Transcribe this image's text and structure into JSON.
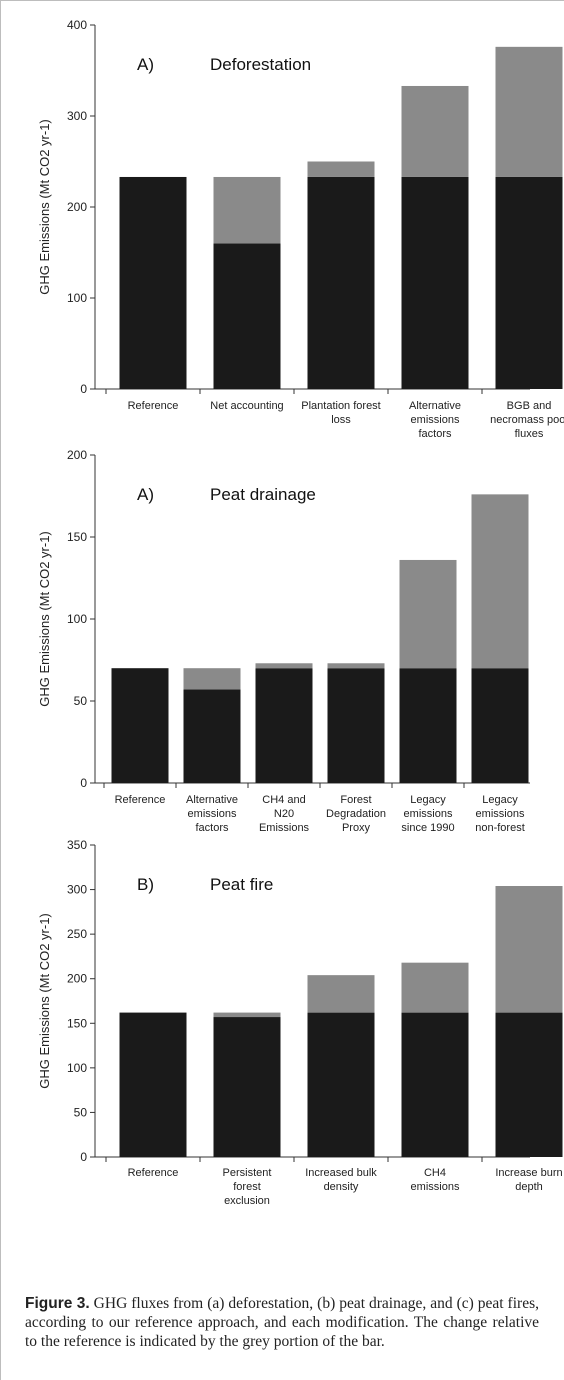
{
  "colors": {
    "base": "#1a1a1a",
    "change": "#8a8a8a",
    "axis": "#333333"
  },
  "chart_data": [
    {
      "type": "bar",
      "stacked": true,
      "panel_label": "A)",
      "title": "Deforestation",
      "ylabel": "GHG Emissions (Mt CO2 yr-1)",
      "ylim": [
        0,
        400
      ],
      "yticks": [
        0,
        100,
        200,
        300,
        400
      ],
      "categories": [
        [
          "Reference"
        ],
        [
          "Net accounting"
        ],
        [
          "Plantation forest",
          "loss"
        ],
        [
          "Alternative",
          "emissions",
          "factors"
        ],
        [
          "BGB and",
          "necromass pool",
          "fluxes"
        ]
      ],
      "series": [
        {
          "values": [
            233,
            160,
            233,
            233,
            233
          ]
        },
        {
          "values": [
            0,
            73,
            17,
            100,
            143
          ]
        }
      ]
    },
    {
      "type": "bar",
      "stacked": true,
      "panel_label": "A)",
      "title": "Peat drainage",
      "ylabel": "GHG Emissions (Mt CO2 yr-1)",
      "ylim": [
        0,
        200
      ],
      "yticks": [
        0,
        50,
        100,
        150,
        200
      ],
      "categories": [
        [
          "Reference"
        ],
        [
          "Alternative",
          "emissions",
          "factors"
        ],
        [
          "CH4 and",
          "N20",
          "Emissions"
        ],
        [
          "Forest",
          "Degradation",
          "Proxy"
        ],
        [
          "Legacy",
          "emissions",
          "since 1990"
        ],
        [
          "Legacy",
          "emissions",
          "non-forest"
        ]
      ],
      "series": [
        {
          "values": [
            70,
            57,
            70,
            70,
            70,
            70
          ]
        },
        {
          "values": [
            0,
            13,
            3,
            3,
            66,
            106
          ]
        }
      ]
    },
    {
      "type": "bar",
      "stacked": true,
      "panel_label": "B)",
      "title": "Peat fire",
      "ylabel": "GHG Emissions (Mt CO2 yr-1)",
      "ylim": [
        0,
        350
      ],
      "yticks": [
        0,
        50,
        100,
        150,
        200,
        250,
        300,
        350
      ],
      "categories": [
        [
          "Reference"
        ],
        [
          "Persistent",
          "forest",
          "exclusion"
        ],
        [
          "Increased bulk",
          "density"
        ],
        [
          "CH4",
          "emissions"
        ],
        [
          "Increase burn",
          "depth"
        ]
      ],
      "series": [
        {
          "values": [
            162,
            157,
            162,
            162,
            162
          ]
        },
        {
          "values": [
            0,
            5,
            42,
            56,
            142
          ]
        }
      ]
    }
  ],
  "caption": {
    "label": "Figure 3.",
    "text": " GHG fluxes from (a) deforestation, (b) peat drainage, and (c) peat fires, according to our reference approach, and each modification. The change relative to the reference is indicated by the grey portion of the bar."
  }
}
